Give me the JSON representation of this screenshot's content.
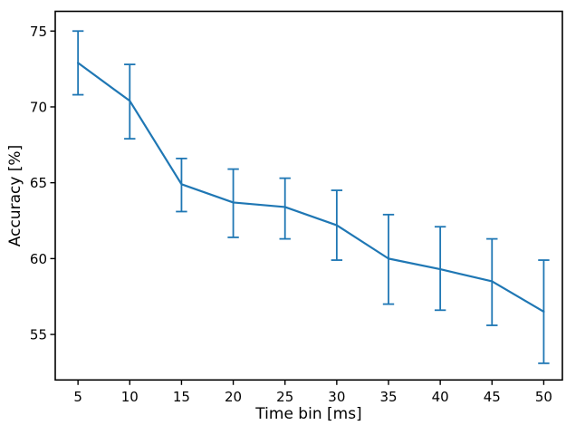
{
  "figure": {
    "background": "#ffffff",
    "spine_color": "#000000"
  },
  "chart_data": {
    "type": "line",
    "title": "",
    "xlabel": "Time bin [ms]",
    "ylabel": "Accuracy [%]",
    "x": [
      5,
      10,
      15,
      20,
      25,
      30,
      35,
      40,
      45,
      50
    ],
    "series": [
      {
        "name": "accuracy",
        "values": [
          72.9,
          70.4,
          64.9,
          63.7,
          63.4,
          62.2,
          60.0,
          59.3,
          58.5,
          56.5
        ],
        "err_upper": [
          75.0,
          72.8,
          66.6,
          65.9,
          65.3,
          64.5,
          62.9,
          62.1,
          61.3,
          59.9
        ],
        "err_lower": [
          70.8,
          67.9,
          63.1,
          61.4,
          61.3,
          59.9,
          57.0,
          56.6,
          55.6,
          53.1
        ],
        "color": "#1f77b4"
      }
    ],
    "xticks": [
      "5",
      "10",
      "15",
      "20",
      "25",
      "30",
      "35",
      "40",
      "45",
      "50"
    ],
    "xtick_values": [
      5,
      10,
      15,
      20,
      25,
      30,
      35,
      40,
      45,
      50
    ],
    "yticks": [
      "55",
      "60",
      "65",
      "70",
      "75"
    ],
    "ytick_values": [
      55,
      60,
      65,
      70,
      75
    ],
    "xlim": [
      2.8,
      51.8
    ],
    "ylim": [
      52.0,
      76.3
    ],
    "grid": false,
    "legend": null
  }
}
